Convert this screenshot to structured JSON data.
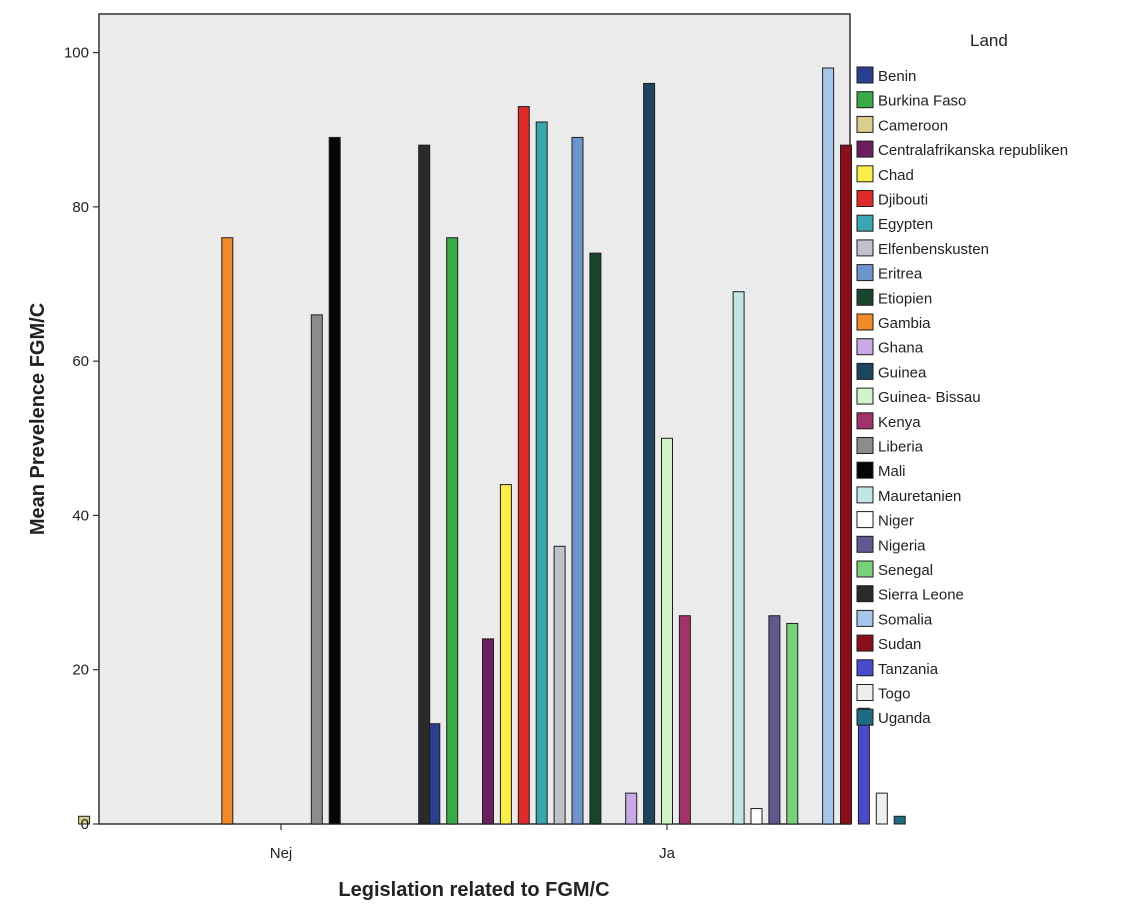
{
  "chart_data": {
    "type": "bar",
    "xlabel": "Legislation related to FGM/C",
    "ylabel": "Mean Prevelence FGM/C",
    "ylim": [
      0,
      105
    ],
    "yticks": [
      0,
      20,
      40,
      60,
      80,
      100
    ],
    "categories": [
      "Nej",
      "Ja"
    ],
    "grid": false,
    "legend_position": "right",
    "legend_title": "Land",
    "series": [
      {
        "name": "Benin",
        "color": "#2b3f8f",
        "values": [
          null,
          13
        ]
      },
      {
        "name": "Burkina Faso",
        "color": "#3aaa48",
        "values": [
          null,
          76
        ]
      },
      {
        "name": "Cameroon",
        "color": "#d8cf8c",
        "values": [
          1,
          null
        ]
      },
      {
        "name": "Centralafrikanska republiken",
        "color": "#6b1e5e",
        "values": [
          null,
          24
        ]
      },
      {
        "name": "Chad",
        "color": "#f8ed4a",
        "values": [
          null,
          44
        ]
      },
      {
        "name": "Djibouti",
        "color": "#dd2a2a",
        "values": [
          null,
          93
        ]
      },
      {
        "name": "Egypten",
        "color": "#3aa6b0",
        "values": [
          null,
          91
        ]
      },
      {
        "name": "Elfenbenskusten",
        "color": "#bfc3c9",
        "values": [
          null,
          36
        ]
      },
      {
        "name": "Eritrea",
        "color": "#6d94cc",
        "values": [
          null,
          89
        ]
      },
      {
        "name": "Etiopien",
        "color": "#17462f",
        "values": [
          null,
          74
        ]
      },
      {
        "name": "Gambia",
        "color": "#f08a26",
        "values": [
          76,
          null
        ]
      },
      {
        "name": "Ghana",
        "color": "#c9a9e6",
        "values": [
          null,
          4
        ]
      },
      {
        "name": "Guinea",
        "color": "#1c4560",
        "values": [
          null,
          96
        ]
      },
      {
        "name": "Guinea- Bissau",
        "color": "#d2f2c8",
        "values": [
          null,
          50
        ]
      },
      {
        "name": "Kenya",
        "color": "#a2336a",
        "values": [
          null,
          27
        ]
      },
      {
        "name": "Liberia",
        "color": "#8c8c8c",
        "values": [
          66,
          null
        ]
      },
      {
        "name": "Mali",
        "color": "#050505",
        "values": [
          89,
          null
        ]
      },
      {
        "name": "Mauretanien",
        "color": "#bfe5e5",
        "values": [
          null,
          69
        ]
      },
      {
        "name": "Niger",
        "color": "#ffffff",
        "values": [
          null,
          2
        ]
      },
      {
        "name": "Nigeria",
        "color": "#5e5a90",
        "values": [
          null,
          27
        ]
      },
      {
        "name": "Senegal",
        "color": "#7ad07a",
        "values": [
          null,
          26
        ]
      },
      {
        "name": "Sierra Leone",
        "color": "#2a2a2a",
        "values": [
          88,
          null
        ]
      },
      {
        "name": "Somalia",
        "color": "#a8c6ea",
        "values": [
          null,
          98
        ]
      },
      {
        "name": "Sudan",
        "color": "#8a0f1c",
        "values": [
          null,
          88
        ]
      },
      {
        "name": "Tanzania",
        "color": "#4a4acc",
        "values": [
          null,
          15
        ]
      },
      {
        "name": "Togo",
        "color": "#efefef",
        "values": [
          null,
          4
        ]
      },
      {
        "name": "Uganda",
        "color": "#1f6a80",
        "values": [
          null,
          1
        ]
      }
    ]
  }
}
